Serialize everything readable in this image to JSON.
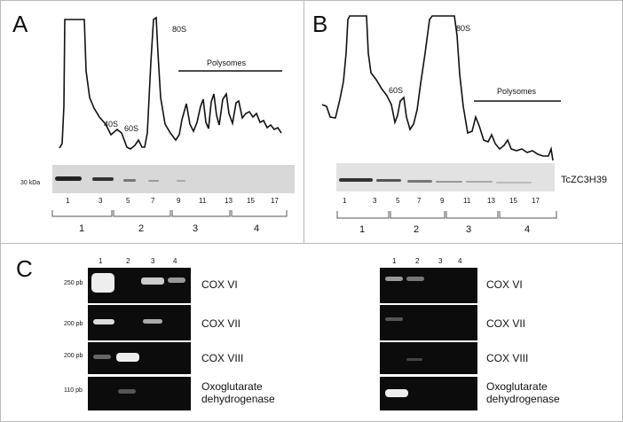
{
  "panelA": {
    "letter": "A",
    "peaks": {
      "s40": "40S",
      "s60": "60S",
      "s80": "80S"
    },
    "polysomes": "Polysomes",
    "marker": "30 kDa",
    "lanes": [
      "1",
      "3",
      "5",
      "7",
      "9",
      "11",
      "13",
      "15",
      "17"
    ],
    "fractions": [
      "1",
      "2",
      "3",
      "4"
    ]
  },
  "panelB": {
    "letter": "B",
    "peaks": {
      "s60": "60S",
      "s80": "80S"
    },
    "polysomes": "Polysomes",
    "protein": "TcZC3H39",
    "lanes": [
      "1",
      "3",
      "5",
      "7",
      "9",
      "11",
      "13",
      "15",
      "17"
    ],
    "fractions": [
      "1",
      "2",
      "3",
      "4"
    ]
  },
  "panelC": {
    "letter": "C",
    "lanes": [
      "1",
      "2",
      "3",
      "4"
    ],
    "markers": [
      "250 pb",
      "200 pb",
      "200 pb",
      "110 pb"
    ],
    "genes": [
      "COX VI",
      "COX VII",
      "COX VIII",
      "Oxoglutarate dehydrogenase"
    ]
  }
}
